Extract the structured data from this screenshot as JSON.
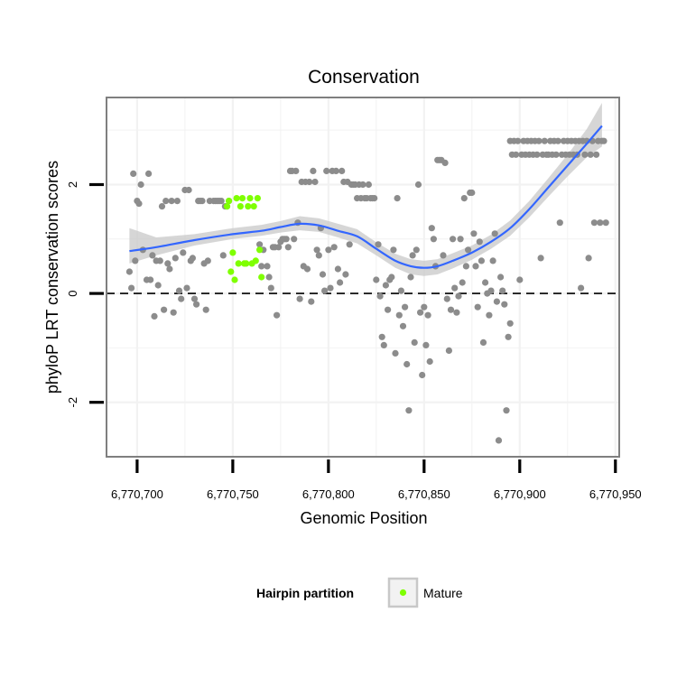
{
  "chart_data": {
    "type": "scatter",
    "title": "Conservation",
    "xlabel": "Genomic Position",
    "ylabel": "phyloP LRT conservation scores",
    "xlim": [
      6770684,
      6770952
    ],
    "ylim": [
      -3.0,
      3.6
    ],
    "x_ticks": [
      6770700,
      6770750,
      6770800,
      6770850,
      6770900,
      6770950
    ],
    "x_tick_labels": [
      "6,770,700",
      "6,770,750",
      "6,770,800",
      "6,770,850",
      "6,770,900",
      "6,770,950"
    ],
    "y_ticks": [
      -2,
      0,
      2
    ],
    "y_tick_labels": [
      "-2",
      "0",
      "2"
    ],
    "grid": true,
    "reference_line": {
      "y": 0,
      "style": "dashed"
    },
    "colors": {
      "background_points": "#8c8c8c",
      "mature_points": "#7fff00",
      "smooth_line": "#3366ff",
      "confidence_band": "#c8c8c8",
      "panel_border": "#7f7f7f",
      "grid": "#f2f2f2"
    },
    "legend": {
      "title": "Hairpin partition",
      "position": "bottom",
      "entries": [
        {
          "label": "Mature",
          "color": "#7fff00"
        }
      ]
    },
    "series": [
      {
        "role": "background",
        "points": [
          [
            6770696,
            0.4
          ],
          [
            6770697,
            0.1
          ],
          [
            6770698,
            2.2
          ],
          [
            6770699,
            0.6
          ],
          [
            6770700,
            1.7
          ],
          [
            6770701,
            1.65
          ],
          [
            6770702,
            2.0
          ],
          [
            6770703,
            0.8
          ],
          [
            6770705,
            0.25
          ],
          [
            6770706,
            2.2
          ],
          [
            6770707,
            0.25
          ],
          [
            6770708,
            0.7
          ],
          [
            6770709,
            -0.42
          ],
          [
            6770710,
            0.6
          ],
          [
            6770711,
            0.15
          ],
          [
            6770712,
            0.6
          ],
          [
            6770713,
            1.6
          ],
          [
            6770714,
            -0.3
          ],
          [
            6770715,
            1.7
          ],
          [
            6770716,
            0.55
          ],
          [
            6770717,
            0.45
          ],
          [
            6770718,
            1.7
          ],
          [
            6770719,
            -0.35
          ],
          [
            6770720,
            0.65
          ],
          [
            6770721,
            1.7
          ],
          [
            6770722,
            0.05
          ],
          [
            6770723,
            -0.1
          ],
          [
            6770724,
            0.75
          ],
          [
            6770725,
            1.9
          ],
          [
            6770726,
            0.1
          ],
          [
            6770727,
            1.9
          ],
          [
            6770728,
            0.6
          ],
          [
            6770729,
            0.65
          ],
          [
            6770730,
            -0.1
          ],
          [
            6770731,
            -0.2
          ],
          [
            6770732,
            1.7
          ],
          [
            6770733,
            1.7
          ],
          [
            6770734,
            1.7
          ],
          [
            6770735,
            0.55
          ],
          [
            6770736,
            -0.3
          ],
          [
            6770737,
            0.6
          ],
          [
            6770738,
            1.7
          ],
          [
            6770740,
            1.7
          ],
          [
            6770741,
            1.7
          ],
          [
            6770742,
            1.7
          ],
          [
            6770743,
            1.7
          ],
          [
            6770744,
            1.7
          ],
          [
            6770745,
            0.7
          ],
          [
            6770746,
            1.6
          ],
          [
            6770747,
            1.6
          ],
          [
            6770748,
            1.7
          ],
          [
            6770764,
            0.9
          ],
          [
            6770765,
            0.5
          ],
          [
            6770766,
            0.8
          ],
          [
            6770768,
            0.5
          ],
          [
            6770769,
            0.3
          ],
          [
            6770770,
            0.1
          ],
          [
            6770771,
            0.85
          ],
          [
            6770772,
            0.85
          ],
          [
            6770773,
            -0.4
          ],
          [
            6770774,
            0.85
          ],
          [
            6770775,
            0.95
          ],
          [
            6770776,
            1.0
          ],
          [
            6770777,
            1.0
          ],
          [
            6770778,
            1.0
          ],
          [
            6770779,
            0.85
          ],
          [
            6770780,
            2.25
          ],
          [
            6770781,
            2.25
          ],
          [
            6770782,
            1.0
          ],
          [
            6770783,
            2.25
          ],
          [
            6770784,
            1.3
          ],
          [
            6770785,
            -0.1
          ],
          [
            6770786,
            2.05
          ],
          [
            6770787,
            0.5
          ],
          [
            6770788,
            2.05
          ],
          [
            6770789,
            0.45
          ],
          [
            6770790,
            2.05
          ],
          [
            6770791,
            -0.15
          ],
          [
            6770792,
            2.25
          ],
          [
            6770793,
            2.05
          ],
          [
            6770794,
            0.8
          ],
          [
            6770795,
            0.7
          ],
          [
            6770796,
            1.2
          ],
          [
            6770797,
            0.35
          ],
          [
            6770798,
            0.05
          ],
          [
            6770799,
            2.25
          ],
          [
            6770800,
            0.8
          ],
          [
            6770801,
            0.1
          ],
          [
            6770802,
            2.25
          ],
          [
            6770803,
            0.85
          ],
          [
            6770804,
            2.25
          ],
          [
            6770805,
            0.45
          ],
          [
            6770806,
            0.2
          ],
          [
            6770807,
            2.25
          ],
          [
            6770808,
            2.05
          ],
          [
            6770809,
            0.35
          ],
          [
            6770810,
            2.05
          ],
          [
            6770811,
            0.9
          ],
          [
            6770812,
            2.0
          ],
          [
            6770813,
            2.0
          ],
          [
            6770814,
            2.0
          ],
          [
            6770815,
            1.75
          ],
          [
            6770816,
            2.0
          ],
          [
            6770817,
            1.75
          ],
          [
            6770818,
            2.0
          ],
          [
            6770819,
            1.75
          ],
          [
            6770820,
            1.75
          ],
          [
            6770821,
            2.0
          ],
          [
            6770822,
            1.75
          ],
          [
            6770823,
            1.75
          ],
          [
            6770824,
            1.75
          ],
          [
            6770825,
            0.25
          ],
          [
            6770826,
            0.9
          ],
          [
            6770827,
            -0.05
          ],
          [
            6770828,
            -0.8
          ],
          [
            6770829,
            -0.95
          ],
          [
            6770830,
            0.15
          ],
          [
            6770831,
            -0.3
          ],
          [
            6770832,
            0.25
          ],
          [
            6770833,
            0.3
          ],
          [
            6770834,
            0.8
          ],
          [
            6770835,
            -1.1
          ],
          [
            6770836,
            1.75
          ],
          [
            6770837,
            -0.4
          ],
          [
            6770838,
            0.05
          ],
          [
            6770839,
            -0.6
          ],
          [
            6770840,
            -0.25
          ],
          [
            6770841,
            -1.3
          ],
          [
            6770842,
            -2.15
          ],
          [
            6770843,
            0.3
          ],
          [
            6770844,
            0.7
          ],
          [
            6770845,
            -0.9
          ],
          [
            6770846,
            0.8
          ],
          [
            6770847,
            2.0
          ],
          [
            6770848,
            -0.35
          ],
          [
            6770849,
            -1.5
          ],
          [
            6770850,
            -0.25
          ],
          [
            6770851,
            -0.95
          ],
          [
            6770852,
            -0.4
          ],
          [
            6770853,
            -1.25
          ],
          [
            6770854,
            1.2
          ],
          [
            6770855,
            1.0
          ],
          [
            6770856,
            0.5
          ],
          [
            6770857,
            2.45
          ],
          [
            6770858,
            2.45
          ],
          [
            6770859,
            2.45
          ],
          [
            6770860,
            0.7
          ],
          [
            6770861,
            2.4
          ],
          [
            6770862,
            -0.1
          ],
          [
            6770863,
            -1.05
          ],
          [
            6770864,
            -0.3
          ],
          [
            6770865,
            1.0
          ],
          [
            6770866,
            0.1
          ],
          [
            6770867,
            -0.35
          ],
          [
            6770868,
            -0.05
          ],
          [
            6770869,
            1.0
          ],
          [
            6770870,
            0.2
          ],
          [
            6770871,
            1.75
          ],
          [
            6770872,
            0.5
          ],
          [
            6770873,
            0.8
          ],
          [
            6770874,
            1.85
          ],
          [
            6770875,
            1.85
          ],
          [
            6770876,
            1.1
          ],
          [
            6770877,
            0.5
          ],
          [
            6770878,
            -0.25
          ],
          [
            6770879,
            0.95
          ],
          [
            6770880,
            0.6
          ],
          [
            6770881,
            -0.9
          ],
          [
            6770882,
            0.2
          ],
          [
            6770883,
            0.0
          ],
          [
            6770884,
            -0.4
          ],
          [
            6770885,
            0.05
          ],
          [
            6770886,
            0.6
          ],
          [
            6770887,
            1.1
          ],
          [
            6770888,
            -0.15
          ],
          [
            6770889,
            -2.7
          ],
          [
            6770890,
            0.3
          ],
          [
            6770891,
            0.05
          ],
          [
            6770892,
            -0.2
          ],
          [
            6770893,
            -2.15
          ],
          [
            6770894,
            -0.8
          ],
          [
            6770895,
            -0.55
          ],
          [
            6770895,
            2.8
          ],
          [
            6770896,
            2.55
          ],
          [
            6770897,
            2.8
          ],
          [
            6770898,
            2.55
          ],
          [
            6770899,
            2.8
          ],
          [
            6770900,
            0.25
          ],
          [
            6770901,
            2.55
          ],
          [
            6770902,
            2.8
          ],
          [
            6770903,
            2.55
          ],
          [
            6770904,
            2.8
          ],
          [
            6770905,
            2.55
          ],
          [
            6770906,
            2.8
          ],
          [
            6770907,
            2.55
          ],
          [
            6770908,
            2.8
          ],
          [
            6770909,
            2.55
          ],
          [
            6770910,
            2.8
          ],
          [
            6770911,
            0.65
          ],
          [
            6770912,
            2.55
          ],
          [
            6770913,
            2.8
          ],
          [
            6770914,
            2.55
          ],
          [
            6770915,
            2.55
          ],
          [
            6770916,
            2.8
          ],
          [
            6770917,
            2.55
          ],
          [
            6770918,
            2.8
          ],
          [
            6770919,
            2.55
          ],
          [
            6770920,
            2.8
          ],
          [
            6770921,
            1.3
          ],
          [
            6770922,
            2.55
          ],
          [
            6770923,
            2.8
          ],
          [
            6770924,
            2.55
          ],
          [
            6770925,
            2.8
          ],
          [
            6770926,
            2.55
          ],
          [
            6770927,
            2.8
          ],
          [
            6770928,
            2.55
          ],
          [
            6770929,
            2.8
          ],
          [
            6770930,
            2.55
          ],
          [
            6770931,
            2.8
          ],
          [
            6770932,
            0.1
          ],
          [
            6770933,
            2.8
          ],
          [
            6770934,
            2.55
          ],
          [
            6770935,
            2.8
          ],
          [
            6770936,
            0.65
          ],
          [
            6770937,
            2.55
          ],
          [
            6770938,
            2.8
          ],
          [
            6770939,
            1.3
          ],
          [
            6770940,
            2.55
          ],
          [
            6770941,
            2.8
          ],
          [
            6770942,
            1.3
          ],
          [
            6770943,
            2.8
          ],
          [
            6770944,
            2.8
          ],
          [
            6770945,
            1.3
          ]
        ]
      },
      {
        "name": "Mature",
        "role": "mature",
        "points": [
          [
            6770747,
            1.6
          ],
          [
            6770748,
            1.7
          ],
          [
            6770749,
            0.4
          ],
          [
            6770750,
            0.75
          ],
          [
            6770751,
            0.25
          ],
          [
            6770752,
            1.75
          ],
          [
            6770753,
            0.55
          ],
          [
            6770754,
            1.6
          ],
          [
            6770755,
            1.75
          ],
          [
            6770756,
            0.55
          ],
          [
            6770757,
            0.55
          ],
          [
            6770758,
            1.6
          ],
          [
            6770759,
            1.75
          ],
          [
            6770760,
            0.55
          ],
          [
            6770761,
            1.6
          ],
          [
            6770762,
            0.6
          ],
          [
            6770763,
            1.75
          ],
          [
            6770764,
            0.8
          ],
          [
            6770765,
            0.3
          ]
        ]
      }
    ],
    "smooth": {
      "x": [
        6770696,
        6770710,
        6770730,
        6770750,
        6770765,
        6770775,
        6770785,
        6770795,
        6770805,
        6770815,
        6770825,
        6770835,
        6770843,
        6770850,
        6770857,
        6770865,
        6770875,
        6770885,
        6770895,
        6770905,
        6770915,
        6770925,
        6770935,
        6770943
      ],
      "y": [
        0.78,
        0.85,
        0.98,
        1.09,
        1.15,
        1.22,
        1.28,
        1.25,
        1.15,
        1.05,
        0.82,
        0.6,
        0.5,
        0.47,
        0.5,
        0.6,
        0.75,
        0.95,
        1.2,
        1.55,
        1.95,
        2.35,
        2.75,
        3.08
      ],
      "lower": [
        0.55,
        0.7,
        0.88,
        1.0,
        1.06,
        1.12,
        1.16,
        1.13,
        1.03,
        0.92,
        0.7,
        0.47,
        0.35,
        0.32,
        0.35,
        0.46,
        0.62,
        0.82,
        1.06,
        1.4,
        1.78,
        2.15,
        2.5,
        2.7
      ],
      "upper": [
        1.2,
        1.03,
        1.09,
        1.2,
        1.26,
        1.33,
        1.42,
        1.38,
        1.28,
        1.18,
        0.94,
        0.73,
        0.63,
        0.6,
        0.63,
        0.74,
        0.88,
        1.08,
        1.34,
        1.7,
        2.12,
        2.55,
        3.02,
        3.5
      ]
    }
  }
}
